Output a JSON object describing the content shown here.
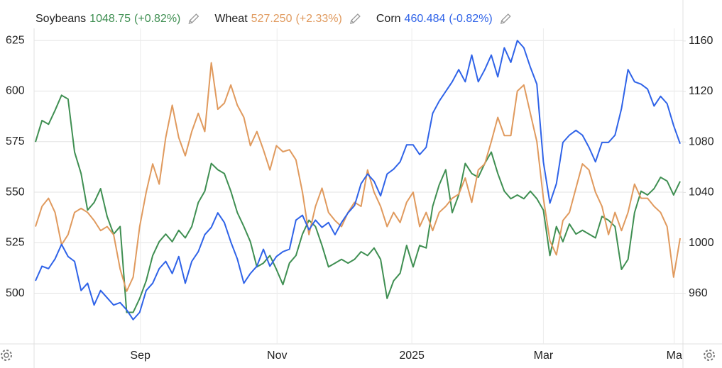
{
  "chart_data": {
    "type": "line",
    "legend": [
      {
        "name": "Soybeans",
        "price": "1048.75",
        "change": "(+0.82%)"
      },
      {
        "name": "Wheat",
        "price": "527.250",
        "change": "(+2.33%)"
      },
      {
        "name": "Corn",
        "price": "460.484",
        "change": "(-0.82%)"
      }
    ],
    "xlim": [
      0,
      99
    ],
    "xticks": [
      {
        "value": 16.1,
        "label": "Sep"
      },
      {
        "value": 37.1,
        "label": "Nov"
      },
      {
        "value": 57.8,
        "label": "2025"
      },
      {
        "value": 78.0,
        "label": "Mar"
      },
      {
        "value": 98.1,
        "label": "Ma"
      }
    ],
    "ylim": [
      475,
      631
    ],
    "yticks": [
      500,
      525,
      550,
      575,
      600,
      625
    ],
    "y2lim": [
      920,
      1170
    ],
    "y2ticks": [
      960,
      1000,
      1040,
      1080,
      1120,
      1160
    ],
    "y3lim": [
      378,
      508
    ],
    "grid": true,
    "series": [
      {
        "name": "Soybeans",
        "color": "#3f8f52",
        "axis": "y2",
        "values": [
          1080,
          1097,
          1094,
          1105,
          1117,
          1114,
          1072,
          1055,
          1026,
          1032,
          1043,
          1021,
          1007,
          1013,
          945,
          945,
          956,
          970,
          990,
          1001,
          1007,
          1001,
          1010,
          1004,
          1013,
          1032,
          1041,
          1063,
          1058,
          1055,
          1041,
          1024,
          1013,
          1001,
          981,
          984,
          990,
          979,
          967,
          984,
          990,
          1007,
          1018,
          1013,
          998,
          981,
          984,
          987,
          984,
          987,
          993,
          990,
          996,
          987,
          956,
          970,
          976,
          998,
          981,
          998,
          996,
          1029,
          1046,
          1058,
          1024,
          1038,
          1063,
          1055,
          1052,
          1063,
          1072,
          1055,
          1041,
          1035,
          1038,
          1035,
          1041,
          1035,
          1026,
          990,
          1013,
          1001,
          1015,
          1007,
          1010,
          1007,
          1004,
          1021,
          1018,
          1013,
          979,
          987,
          1024,
          1041,
          1038,
          1043,
          1052,
          1049,
          1038,
          1048.75
        ]
      },
      {
        "name": "Wheat",
        "color": "#e09a5e",
        "axis": "y",
        "values": [
          533,
          543,
          547,
          540,
          524,
          529,
          540,
          542,
          540,
          536,
          531,
          533,
          529,
          512,
          501,
          508,
          533,
          550,
          564,
          554,
          577,
          593,
          577,
          568,
          580,
          589,
          580,
          614,
          591,
          594,
          603,
          593,
          587,
          573,
          580,
          571,
          561,
          573,
          570,
          571,
          566,
          550,
          529,
          543,
          552,
          540,
          536,
          533,
          540,
          545,
          543,
          561,
          550,
          543,
          533,
          540,
          535,
          545,
          550,
          533,
          540,
          531,
          540,
          543,
          547,
          549,
          557,
          545,
          561,
          564,
          575,
          587,
          578,
          578,
          600,
          603,
          589,
          575,
          547,
          526,
          519,
          536,
          540,
          552,
          564,
          561,
          550,
          543,
          529,
          540,
          531,
          540,
          554,
          547,
          547,
          543,
          540,
          533,
          508,
          527.25
        ]
      },
      {
        "name": "Corn",
        "color": "#2f63e8",
        "axis": "y3",
        "values": [
          404,
          410,
          409,
          413,
          419,
          414,
          412,
          400,
          403,
          394,
          400,
          397,
          394,
          395,
          392,
          388,
          391,
          400,
          403,
          409,
          412,
          407,
          414,
          403,
          412,
          416,
          423,
          426,
          432,
          428,
          420,
          413,
          403,
          407,
          410,
          417,
          410,
          414,
          416,
          417,
          429,
          431,
          425,
          429,
          426,
          428,
          423,
          428,
          432,
          435,
          444,
          448,
          445,
          439,
          448,
          450,
          453,
          460,
          460,
          456,
          459,
          473,
          478,
          482,
          486,
          491,
          486,
          497,
          486,
          491,
          497,
          488,
          500,
          494,
          503,
          500,
          492,
          485,
          453,
          436,
          444,
          461,
          464,
          466,
          464,
          459,
          453,
          461,
          461,
          464,
          475,
          491,
          486,
          485,
          483,
          476,
          480,
          477,
          468,
          460.484
        ]
      }
    ]
  }
}
